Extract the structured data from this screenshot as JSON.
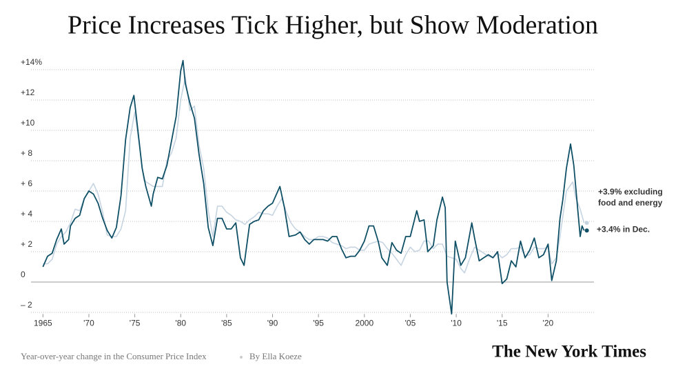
{
  "chart_data": {
    "type": "line",
    "title": "Price Increases Tick Higher, but Show Moderation",
    "subtitle": "Year-over-year change in the Consumer Price Index",
    "byline": "By Ella Koeze",
    "logo": "The New York Times",
    "xlim": [
      1963.7,
      2025
    ],
    "ylim": [
      -2.1,
      14.3
    ],
    "xticks": [
      1965,
      {
        "value": 1970,
        "label": "'70"
      },
      {
        "value": 1975,
        "label": "'75"
      },
      {
        "value": 1980,
        "label": "'80"
      },
      {
        "value": 1985,
        "label": "'85"
      },
      {
        "value": 1990,
        "label": "'90"
      },
      {
        "value": 1995,
        "label": "'95"
      },
      2000,
      {
        "value": 2005,
        "label": "'05"
      },
      {
        "value": 2010,
        "label": "'10"
      },
      {
        "value": 2015,
        "label": "'15"
      },
      {
        "value": 2020,
        "label": "'20"
      }
    ],
    "yticks": [
      {
        "value": -2,
        "label": "– 2"
      },
      0,
      {
        "value": 2,
        "label": "+ 2"
      },
      {
        "value": 4,
        "label": "+ 4"
      },
      {
        "value": 6,
        "label": "+ 6"
      },
      {
        "value": 8,
        "label": "+ 8"
      },
      {
        "value": 10,
        "label": "+10"
      },
      {
        "value": 12,
        "label": "+12"
      },
      {
        "value": 14,
        "label": "+14%"
      }
    ],
    "grid": true,
    "series": [
      {
        "name": "+3.9% excluding food and energy",
        "color": "#c6d4e2",
        "label_color": "#9fb4cb",
        "x": [
          1965,
          1965.5,
          1966,
          1966.5,
          1967,
          1967.5,
          1968,
          1968.5,
          1969,
          1969.5,
          1970,
          1970.5,
          1971,
          1971.5,
          1972,
          1972.5,
          1973,
          1973.5,
          1974,
          1974.5,
          1975,
          1975.5,
          1976,
          1976.5,
          1977,
          1977.5,
          1978,
          1978.5,
          1979,
          1979.5,
          1980,
          1980.5,
          1981,
          1981.5,
          1982,
          1982.5,
          1983,
          1983.5,
          1984,
          1984.5,
          1985,
          1985.5,
          1986,
          1986.5,
          1987,
          1987.5,
          1988,
          1988.5,
          1989,
          1989.5,
          1990,
          1990.5,
          1991,
          1991.5,
          1992,
          1992.5,
          1993,
          1993.5,
          1994,
          1994.5,
          1995,
          1995.5,
          1996,
          1996.5,
          1997,
          1997.5,
          1998,
          1998.5,
          1999,
          1999.5,
          2000,
          2000.5,
          2001,
          2001.5,
          2002,
          2002.5,
          2003,
          2003.5,
          2004,
          2004.5,
          2005,
          2005.5,
          2006,
          2006.5,
          2007,
          2007.5,
          2008,
          2008.5,
          2009,
          2009.5,
          2010,
          2010.5,
          2010.9,
          2011.5,
          2012,
          2012.5,
          2013,
          2013.5,
          2014,
          2014.5,
          2015,
          2015.5,
          2016,
          2016.5,
          2017,
          2017.5,
          2018,
          2018.5,
          2019,
          2019.5,
          2020,
          2020.4,
          2020.9,
          2021.3,
          2021.6,
          2022,
          2022.7,
          2023,
          2023.5,
          2023.92
        ],
        "values": [
          1.2,
          1.2,
          1.5,
          2.5,
          3.0,
          3.3,
          3.9,
          4.8,
          4.7,
          5.5,
          6.0,
          6.5,
          5.8,
          4.6,
          3.1,
          3.0,
          3.0,
          3.5,
          4.7,
          9.5,
          11.2,
          9.0,
          6.7,
          6.5,
          6.3,
          6.3,
          6.3,
          8.0,
          8.5,
          9.5,
          12.0,
          13.5,
          11.3,
          11.6,
          9.0,
          7.5,
          4.7,
          3.0,
          5.0,
          5.0,
          4.6,
          4.4,
          4.1,
          4.0,
          3.8,
          4.1,
          4.3,
          4.6,
          4.5,
          4.5,
          4.4,
          5.0,
          5.5,
          4.6,
          3.9,
          3.5,
          3.3,
          3.0,
          2.8,
          2.8,
          3.0,
          3.0,
          2.9,
          2.6,
          2.5,
          2.4,
          2.2,
          2.3,
          2.3,
          2.1,
          2.1,
          2.5,
          2.6,
          2.7,
          2.6,
          2.2,
          1.9,
          1.5,
          1.1,
          1.8,
          2.3,
          2.0,
          2.1,
          2.7,
          2.7,
          2.2,
          2.5,
          2.5,
          1.7,
          1.6,
          1.5,
          0.9,
          0.6,
          1.6,
          2.3,
          2.1,
          1.9,
          1.7,
          1.6,
          1.9,
          1.6,
          1.8,
          2.2,
          2.2,
          2.3,
          1.7,
          1.8,
          2.3,
          2.2,
          2.2,
          2.3,
          1.2,
          1.6,
          3.0,
          4.3,
          6.0,
          6.6,
          5.6,
          4.8,
          3.9
        ]
      },
      {
        "name": "+3.4% in Dec.",
        "color": "#0e4f66",
        "label_color": "#111",
        "x": [
          1965,
          1965.5,
          1966,
          1966.5,
          1967,
          1967.3,
          1967.8,
          1968,
          1968.5,
          1969,
          1969.5,
          1970,
          1970.5,
          1971,
          1971.5,
          1972,
          1972.5,
          1973,
          1973.5,
          1974,
          1974.5,
          1974.9,
          1975.3,
          1975.8,
          1976.2,
          1976.8,
          1977,
          1977.5,
          1978,
          1978.5,
          1979,
          1979.5,
          1980,
          1980.25,
          1980.5,
          1981,
          1981.5,
          1982,
          1982.5,
          1983,
          1983.5,
          1984,
          1984.5,
          1985,
          1985.5,
          1986,
          1986.5,
          1986.9,
          1987.5,
          1988,
          1988.5,
          1989,
          1989.5,
          1990,
          1990.8,
          1991.3,
          1991.8,
          1992.5,
          1993,
          1993.5,
          1994,
          1994.5,
          1995,
          1995.5,
          1996,
          1996.5,
          1997,
          1997.5,
          1998,
          1998.5,
          1999,
          1999.5,
          2000,
          2000.5,
          2001,
          2001.5,
          2001.9,
          2002.5,
          2003,
          2003.5,
          2004,
          2004.5,
          2005,
          2005.7,
          2006,
          2006.5,
          2006.9,
          2007.5,
          2007.9,
          2008.5,
          2008.8,
          2009,
          2009.5,
          2009.9,
          2010.5,
          2011,
          2011.7,
          2012,
          2012.5,
          2013,
          2013.5,
          2014,
          2014.5,
          2015,
          2015.5,
          2016,
          2016.5,
          2017,
          2017.5,
          2018,
          2018.5,
          2019,
          2019.5,
          2020,
          2020.4,
          2020.9,
          2021.3,
          2021.6,
          2022,
          2022.45,
          2022.8,
          2023.2,
          2023.5,
          2023.7,
          2023.92
        ],
        "values": [
          1.0,
          1.7,
          1.9,
          2.8,
          3.5,
          2.5,
          2.8,
          3.7,
          4.2,
          4.4,
          5.5,
          6.0,
          5.8,
          5.2,
          4.2,
          3.4,
          2.9,
          3.6,
          5.7,
          9.4,
          11.5,
          12.3,
          10.2,
          7.5,
          6.3,
          5.0,
          5.8,
          6.9,
          6.8,
          7.7,
          9.3,
          10.9,
          13.9,
          14.6,
          13.1,
          11.8,
          10.8,
          8.4,
          6.5,
          3.6,
          2.4,
          4.2,
          4.2,
          3.5,
          3.5,
          3.9,
          1.6,
          1.1,
          3.8,
          4.0,
          4.1,
          4.7,
          5.0,
          5.2,
          6.3,
          4.9,
          3.0,
          3.1,
          3.3,
          2.8,
          2.5,
          2.8,
          2.8,
          2.8,
          2.7,
          3.0,
          3.0,
          2.2,
          1.6,
          1.7,
          1.7,
          2.1,
          2.7,
          3.7,
          3.7,
          2.7,
          1.6,
          1.1,
          2.6,
          2.1,
          1.9,
          3.0,
          3.0,
          4.7,
          4.0,
          4.1,
          2.0,
          2.4,
          4.1,
          5.6,
          4.9,
          0.0,
          -2.1,
          2.7,
          1.1,
          1.6,
          3.9,
          2.9,
          1.4,
          1.6,
          1.8,
          1.6,
          2.0,
          -0.1,
          0.2,
          1.4,
          1.0,
          2.7,
          1.6,
          2.1,
          2.9,
          1.6,
          1.8,
          2.5,
          0.1,
          1.4,
          4.2,
          5.4,
          7.5,
          9.1,
          7.7,
          5.0,
          3.0,
          3.7,
          3.4
        ]
      }
    ]
  }
}
